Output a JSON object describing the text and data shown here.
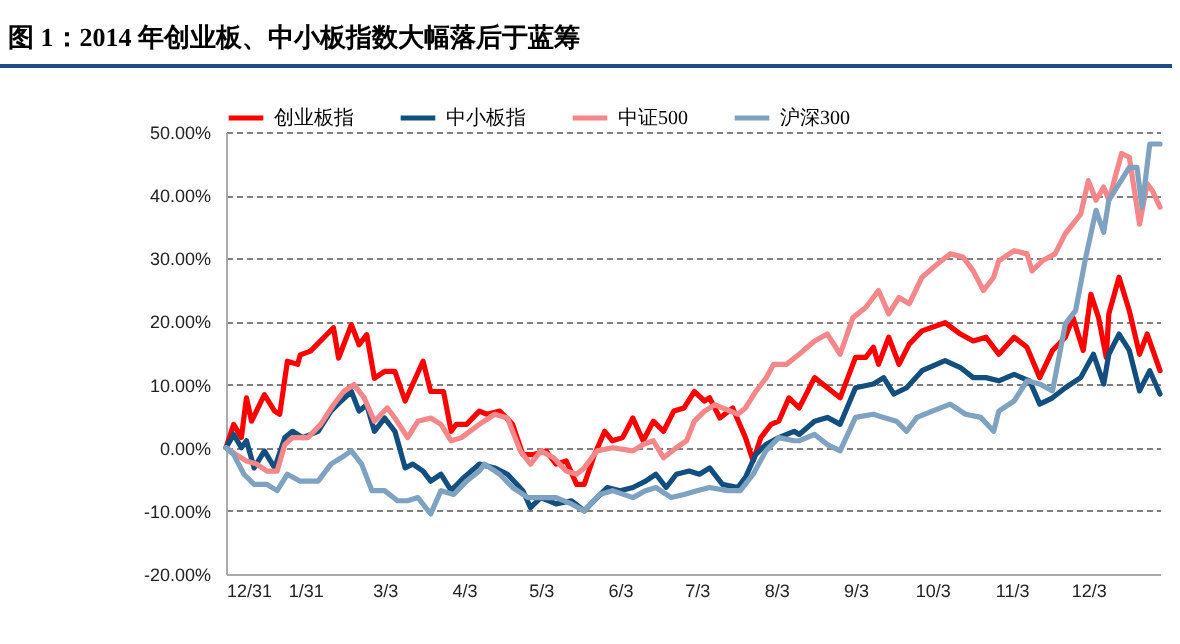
{
  "chart_data": {
    "type": "line",
    "title": "图 1：2014 年创业板、中小板指数大幅落后于蓝筹",
    "xlim": [
      "2013-12-31",
      "2014-12-31"
    ],
    "xticks": [
      {
        "value": "2013-12-31",
        "label": "12/31"
      },
      {
        "value": "2014-01-31",
        "label": "1/31"
      },
      {
        "value": "2014-03-03",
        "label": "3/3"
      },
      {
        "value": "2014-04-03",
        "label": "4/3"
      },
      {
        "value": "2014-05-03",
        "label": "5/3"
      },
      {
        "value": "2014-06-03",
        "label": "6/3"
      },
      {
        "value": "2014-07-03",
        "label": "7/3"
      },
      {
        "value": "2014-08-03",
        "label": "8/3"
      },
      {
        "value": "2014-09-03",
        "label": "9/3"
      },
      {
        "value": "2014-10-03",
        "label": "10/3"
      },
      {
        "value": "2014-11-03",
        "label": "11/3"
      },
      {
        "value": "2014-12-03",
        "label": "12/3"
      }
    ],
    "ylim": [
      -20,
      50
    ],
    "yticks": [
      {
        "value": -20,
        "label": "-20.00%"
      },
      {
        "value": -10,
        "label": "-10.00%"
      },
      {
        "value": 0,
        "label": "0.00%"
      },
      {
        "value": 10,
        "label": "10.00%"
      },
      {
        "value": 20,
        "label": "20.00%"
      },
      {
        "value": 30,
        "label": "30.00%"
      },
      {
        "value": 40,
        "label": "40.00%"
      },
      {
        "value": 50,
        "label": "50.00%"
      }
    ],
    "grid": "y",
    "legend": "top",
    "series": [
      {
        "name": "创业板指",
        "color": "#ff0000",
        "x": [
          "2013-12-31",
          "2014-01-03",
          "2014-01-06",
          "2014-01-08",
          "2014-01-10",
          "2014-01-15",
          "2014-01-19",
          "2014-01-21",
          "2014-01-24",
          "2014-01-28",
          "2014-01-29",
          "2014-02-02",
          "2014-02-11",
          "2014-02-13",
          "2014-02-18",
          "2014-02-21",
          "2014-02-24",
          "2014-02-27",
          "2014-03-03",
          "2014-03-07",
          "2014-03-11",
          "2014-03-18",
          "2014-03-21",
          "2014-03-26",
          "2014-03-29",
          "2014-03-31",
          "2014-04-04",
          "2014-04-09",
          "2014-04-12",
          "2014-04-17",
          "2014-04-22",
          "2014-04-26",
          "2014-04-30",
          "2014-05-05",
          "2014-05-09",
          "2014-05-13",
          "2014-05-17",
          "2014-05-20",
          "2014-05-24",
          "2014-05-28",
          "2014-05-31",
          "2014-06-04",
          "2014-06-08",
          "2014-06-12",
          "2014-06-16",
          "2014-06-20",
          "2014-06-24",
          "2014-06-28",
          "2014-07-02",
          "2014-07-06",
          "2014-07-08",
          "2014-07-12",
          "2014-07-17",
          "2014-07-22",
          "2014-07-25",
          "2014-07-28",
          "2014-08-01",
          "2014-08-04",
          "2014-08-08",
          "2014-08-12",
          "2014-08-18",
          "2014-08-23",
          "2014-08-28",
          "2014-09-03",
          "2014-09-07",
          "2014-09-10",
          "2014-09-12",
          "2014-09-16",
          "2014-09-20",
          "2014-09-24",
          "2014-09-29",
          "2014-10-08",
          "2014-10-14",
          "2014-10-19",
          "2014-10-24",
          "2014-10-29",
          "2014-11-04",
          "2014-11-09",
          "2014-11-14",
          "2014-11-19",
          "2014-11-24",
          "2014-11-27",
          "2014-12-01",
          "2014-12-04",
          "2014-12-07",
          "2014-12-10",
          "2014-12-11",
          "2014-12-15",
          "2014-12-19",
          "2014-12-23",
          "2014-12-26",
          "2014-12-31"
        ],
        "values": [
          0,
          3.7,
          1.6,
          7.9,
          4.2,
          8.4,
          5.8,
          5.3,
          13.7,
          13.2,
          14.7,
          15.3,
          19,
          14.2,
          19.5,
          16.3,
          17.9,
          11,
          12.1,
          12.1,
          7.4,
          13.7,
          8.9,
          8.9,
          2.6,
          3.7,
          3.7,
          5.8,
          5.3,
          5.8,
          3.7,
          -1.1,
          -1.1,
          -0.5,
          -2.6,
          -2.1,
          -5.8,
          -5.8,
          -1.1,
          2.6,
          1.1,
          1.6,
          4.7,
          1.1,
          4.2,
          2.6,
          5.8,
          6.3,
          8.9,
          7.4,
          7.9,
          4.7,
          6.3,
          1.6,
          -2.1,
          1.6,
          3.7,
          4.2,
          7.9,
          6.3,
          11.1,
          9.5,
          7.9,
          14.3,
          14.3,
          15.9,
          13.2,
          17.5,
          13.2,
          16.4,
          18.5,
          19.8,
          18,
          16.9,
          17.5,
          14.8,
          17.5,
          15.9,
          11.1,
          15.4,
          17.5,
          20.6,
          15.4,
          24.3,
          20.6,
          14.3,
          21.2,
          27,
          21.7,
          14.8,
          18,
          12.2
        ]
      },
      {
        "name": "中小板指",
        "color": "#124e7e",
        "x": [
          "2013-12-31",
          "2014-01-03",
          "2014-01-06",
          "2014-01-08",
          "2014-01-11",
          "2014-01-15",
          "2014-01-19",
          "2014-01-23",
          "2014-01-26",
          "2014-01-30",
          "2014-02-05",
          "2014-02-10",
          "2014-02-14",
          "2014-02-18",
          "2014-02-21",
          "2014-02-24",
          "2014-02-27",
          "2014-03-03",
          "2014-03-07",
          "2014-03-11",
          "2014-03-14",
          "2014-03-18",
          "2014-03-21",
          "2014-03-25",
          "2014-03-29",
          "2014-04-03",
          "2014-04-09",
          "2014-04-15",
          "2014-04-20",
          "2014-04-26",
          "2014-04-29",
          "2014-05-03",
          "2014-05-09",
          "2014-05-15",
          "2014-05-20",
          "2014-05-25",
          "2014-05-29",
          "2014-06-03",
          "2014-06-08",
          "2014-06-13",
          "2014-06-17",
          "2014-06-21",
          "2014-06-25",
          "2014-06-30",
          "2014-07-04",
          "2014-07-08",
          "2014-07-13",
          "2014-07-19",
          "2014-07-22",
          "2014-07-26",
          "2014-07-30",
          "2014-08-04",
          "2014-08-10",
          "2014-08-12",
          "2014-08-18",
          "2014-08-23",
          "2014-08-28",
          "2014-09-03",
          "2014-09-10",
          "2014-09-14",
          "2014-09-18",
          "2014-09-23",
          "2014-09-29",
          "2014-10-08",
          "2014-10-14",
          "2014-10-19",
          "2014-10-24",
          "2014-10-29",
          "2014-11-04",
          "2014-11-10",
          "2014-11-14",
          "2014-11-19",
          "2014-11-24",
          "2014-11-30",
          "2014-12-05",
          "2014-12-09",
          "2014-12-11",
          "2014-12-15",
          "2014-12-19",
          "2014-12-23",
          "2014-12-27",
          "2014-12-31"
        ],
        "values": [
          0,
          2.1,
          0,
          1.1,
          -3.2,
          -0.5,
          -3.2,
          1.6,
          2.6,
          1.6,
          2.6,
          5.8,
          7.4,
          8.9,
          5.8,
          6.8,
          2.6,
          4.7,
          2.6,
          -3.2,
          -2.6,
          -3.7,
          -5.3,
          -4.2,
          -6.8,
          -4.7,
          -2.6,
          -3.2,
          -4.2,
          -6.8,
          -9.5,
          -7.9,
          -8.9,
          -8.4,
          -10,
          -7.9,
          -6.3,
          -6.8,
          -6.3,
          -5.3,
          -4.2,
          -6.3,
          -4.2,
          -3.7,
          -4.2,
          -3.2,
          -5.8,
          -6.3,
          -4.7,
          -1.1,
          0.5,
          1.6,
          2.6,
          2.1,
          4.2,
          4.8,
          3.7,
          9.5,
          10.1,
          11.1,
          8.5,
          9.5,
          12.2,
          13.8,
          12.7,
          11.1,
          11.1,
          10.6,
          11.6,
          10.6,
          6.9,
          7.9,
          9.5,
          11.1,
          14.8,
          10.1,
          14.8,
          18,
          15.4,
          9,
          12.2,
          8.5
        ]
      },
      {
        "name": "中证500",
        "color": "#f4878a",
        "x": [
          "2013-12-31",
          "2014-01-04",
          "2014-01-08",
          "2014-01-12",
          "2014-01-16",
          "2014-01-20",
          "2014-01-23",
          "2014-01-26",
          "2014-02-01",
          "2014-02-06",
          "2014-02-11",
          "2014-02-15",
          "2014-02-19",
          "2014-02-23",
          "2014-02-27",
          "2014-03-04",
          "2014-03-07",
          "2014-03-12",
          "2014-03-16",
          "2014-03-21",
          "2014-03-25",
          "2014-03-29",
          "2014-04-02",
          "2014-04-09",
          "2014-04-15",
          "2014-04-20",
          "2014-04-25",
          "2014-04-29",
          "2014-05-03",
          "2014-05-08",
          "2014-05-13",
          "2014-05-17",
          "2014-05-20",
          "2014-05-25",
          "2014-05-31",
          "2014-06-08",
          "2014-06-12",
          "2014-06-16",
          "2014-06-20",
          "2014-06-25",
          "2014-06-29",
          "2014-07-02",
          "2014-07-06",
          "2014-07-10",
          "2014-07-13",
          "2014-07-19",
          "2014-07-22",
          "2014-07-26",
          "2014-07-30",
          "2014-08-02",
          "2014-08-07",
          "2014-08-12",
          "2014-08-18",
          "2014-08-23",
          "2014-08-28",
          "2014-09-02",
          "2014-09-07",
          "2014-09-12",
          "2014-09-16",
          "2014-09-20",
          "2014-09-24",
          "2014-09-29",
          "2014-10-05",
          "2014-10-10",
          "2014-10-15",
          "2014-10-19",
          "2014-10-23",
          "2014-10-27",
          "2014-10-29",
          "2014-11-04",
          "2014-11-09",
          "2014-11-11",
          "2014-11-15",
          "2014-11-20",
          "2014-11-24",
          "2014-11-30",
          "2014-12-03",
          "2014-12-06",
          "2014-12-09",
          "2014-12-11",
          "2014-12-16",
          "2014-12-19",
          "2014-12-23",
          "2014-12-26",
          "2014-12-28",
          "2014-12-31"
        ],
        "values": [
          0,
          -1.1,
          -2.1,
          -2.6,
          -3.7,
          -3.7,
          0.5,
          1.6,
          1.6,
          3.7,
          6.8,
          8.9,
          10,
          7.9,
          4.2,
          6.3,
          4.7,
          1.6,
          4.2,
          4.7,
          3.7,
          1.1,
          1.6,
          3.7,
          5.3,
          4.7,
          -0.5,
          -2.6,
          -0.5,
          -1.6,
          -3.7,
          -4.2,
          -3.2,
          -0.5,
          0,
          -0.5,
          0.5,
          1.1,
          -1.6,
          0,
          1.1,
          4.2,
          5.8,
          6.8,
          6.3,
          5.3,
          6.3,
          8.9,
          11,
          13.2,
          13.2,
          14.8,
          16.9,
          18,
          14.8,
          20.6,
          22.2,
          24.9,
          21.2,
          23.8,
          22.8,
          27,
          29.1,
          30.7,
          30.2,
          28,
          24.9,
          27,
          29.6,
          31.2,
          30.7,
          28,
          29.6,
          30.7,
          33.9,
          37,
          42.3,
          39.2,
          41.3,
          39.2,
          46.6,
          46,
          35.4,
          41.8,
          40.7,
          38.1
        ]
      },
      {
        "name": "沪深300",
        "color": "#7fa2c0",
        "x": [
          "2013-12-31",
          "2014-01-03",
          "2014-01-07",
          "2014-01-11",
          "2014-01-16",
          "2014-01-20",
          "2014-01-24",
          "2014-01-29",
          "2014-02-05",
          "2014-02-10",
          "2014-02-14",
          "2014-02-18",
          "2014-02-22",
          "2014-02-26",
          "2014-03-03",
          "2014-03-08",
          "2014-03-12",
          "2014-03-16",
          "2014-03-21",
          "2014-03-25",
          "2014-03-30",
          "2014-04-04",
          "2014-04-09",
          "2014-04-11",
          "2014-04-17",
          "2014-04-22",
          "2014-04-28",
          "2014-05-03",
          "2014-05-09",
          "2014-05-15",
          "2014-05-20",
          "2014-05-26",
          "2014-05-31",
          "2014-06-08",
          "2014-06-13",
          "2014-06-17",
          "2014-06-23",
          "2014-06-28",
          "2014-07-03",
          "2014-07-08",
          "2014-07-15",
          "2014-07-20",
          "2014-07-25",
          "2014-07-30",
          "2014-08-04",
          "2014-08-10",
          "2014-08-12",
          "2014-08-18",
          "2014-08-23",
          "2014-08-28",
          "2014-09-03",
          "2014-09-10",
          "2014-09-14",
          "2014-09-19",
          "2014-09-23",
          "2014-09-27",
          "2014-10-03",
          "2014-10-10",
          "2014-10-16",
          "2014-10-22",
          "2014-10-27",
          "2014-10-29",
          "2014-11-04",
          "2014-11-09",
          "2014-11-14",
          "2014-11-19",
          "2014-11-24",
          "2014-11-28",
          "2014-12-02",
          "2014-12-06",
          "2014-12-09",
          "2014-12-11",
          "2014-12-15",
          "2014-12-19",
          "2014-12-22",
          "2014-12-24",
          "2014-12-27",
          "2014-12-31"
        ],
        "values": [
          0,
          -1.1,
          -4.2,
          -5.8,
          -5.8,
          -6.8,
          -4.2,
          -5.3,
          -5.3,
          -2.6,
          -1.6,
          -0.5,
          -2.6,
          -6.8,
          -6.8,
          -8.4,
          -8.4,
          -7.9,
          -10.5,
          -6.8,
          -7.4,
          -5.3,
          -3.7,
          -2.6,
          -4.2,
          -6.3,
          -7.9,
          -7.9,
          -7.9,
          -8.9,
          -10,
          -7.4,
          -6.8,
          -7.9,
          -6.8,
          -6.3,
          -7.9,
          -7.4,
          -6.8,
          -6.3,
          -6.8,
          -6.8,
          -4.2,
          -0.5,
          1.6,
          1.1,
          1.1,
          2.1,
          0.5,
          -0.5,
          4.8,
          5.3,
          4.8,
          4.2,
          2.6,
          4.8,
          5.8,
          6.9,
          5.3,
          4.8,
          2.6,
          5.8,
          7.4,
          10.6,
          10.1,
          9,
          19.6,
          21.7,
          30.2,
          37.6,
          34.1,
          39.2,
          41.8,
          44.4,
          44.4,
          38.1,
          48.1,
          48.1
        ]
      }
    ]
  }
}
